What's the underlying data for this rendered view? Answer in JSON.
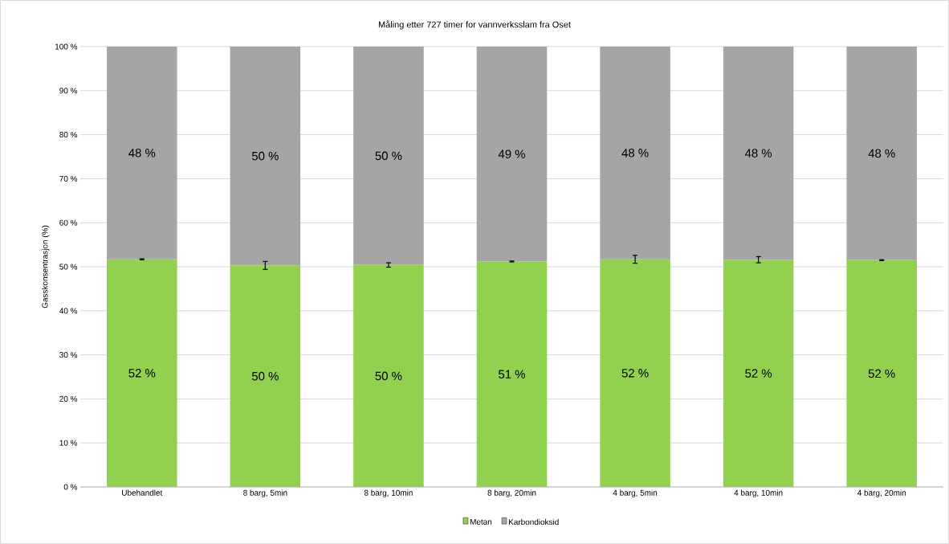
{
  "chart_data": {
    "type": "bar",
    "stacked": true,
    "title": "Måling etter 727 timer for vannverksslam fra Oset",
    "ylabel": "Gasskonsentrasjon (%)",
    "categories": [
      "Ubehandlet",
      "8 barg, 5min",
      "8 barg, 10min",
      "8 barg, 20min",
      "4 barg, 5min",
      "4 barg, 10min",
      "4 barg, 20min"
    ],
    "series": [
      {
        "name": "Metan",
        "color": "#92d050",
        "values": [
          51.7,
          50.3,
          50.4,
          51.2,
          51.7,
          51.6,
          51.5
        ],
        "errors": [
          0.1,
          0.9,
          0.5,
          0.1,
          0.9,
          0.7,
          0.1
        ],
        "value_labels": [
          "52 %",
          "50 %",
          "50 %",
          "51 %",
          "52 %",
          "52 %",
          "52 %"
        ]
      },
      {
        "name": "Karbondioksid",
        "color": "#a5a5a5",
        "values": [
          48.3,
          49.7,
          49.6,
          48.8,
          48.3,
          48.4,
          48.5
        ],
        "value_labels": [
          "48 %",
          "50 %",
          "50 %",
          "49 %",
          "48 %",
          "48 %",
          "48 %"
        ]
      }
    ],
    "ylim": [
      0,
      100
    ],
    "yticks": [
      {
        "value": 0,
        "label": "0 %"
      },
      {
        "value": 10,
        "label": "10 %"
      },
      {
        "value": 20,
        "label": "20 %"
      },
      {
        "value": 30,
        "label": "30 %"
      },
      {
        "value": 40,
        "label": "40 %"
      },
      {
        "value": 50,
        "label": "50 %"
      },
      {
        "value": 60,
        "label": "60 %"
      },
      {
        "value": 70,
        "label": "70 %"
      },
      {
        "value": 80,
        "label": "80 %"
      },
      {
        "value": 90,
        "label": "90 %"
      },
      {
        "value": 100,
        "label": "100 %"
      }
    ],
    "grid": "y",
    "legend": "bottom"
  }
}
